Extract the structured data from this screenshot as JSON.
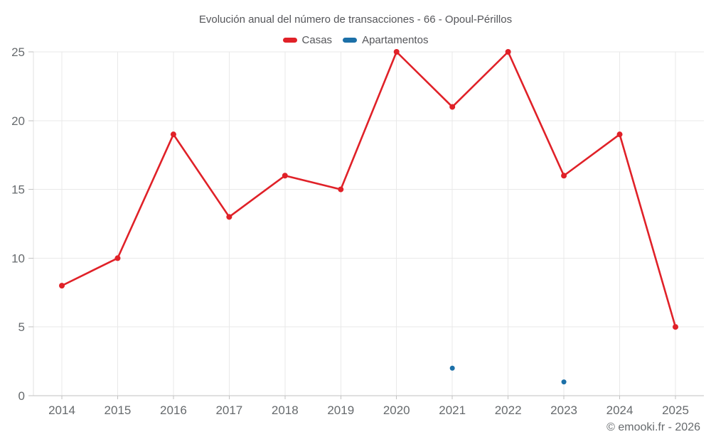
{
  "footer": {
    "credit": "© emooki.fr - 2026"
  },
  "chart_data": {
    "type": "line",
    "title": "Evolución anual del número de transacciones - 66 - Opoul-Périllos",
    "categories": [
      "2014",
      "2015",
      "2016",
      "2017",
      "2018",
      "2019",
      "2020",
      "2021",
      "2022",
      "2023",
      "2024",
      "2025"
    ],
    "series": [
      {
        "name": "Casas",
        "color": "#e02128",
        "values": [
          8,
          10,
          19,
          13,
          16,
          15,
          25,
          21,
          25,
          16,
          19,
          5
        ]
      },
      {
        "name": "Apartamentos",
        "color": "#1c70a8",
        "values": [
          null,
          null,
          null,
          null,
          null,
          null,
          null,
          2,
          null,
          1,
          null,
          null
        ]
      }
    ],
    "ylim": [
      0,
      25
    ],
    "yticks": [
      0,
      5,
      10,
      15,
      20,
      25
    ],
    "grid": true,
    "legend_position": "top"
  },
  "style": {
    "background": "#ffffff",
    "grid_color": "#e9e9e9",
    "axis_color": "#c2c2c2",
    "axis_light_color": "#e0e0e0",
    "tick_label_color": "#666a6d",
    "title_color": "#55565a"
  }
}
